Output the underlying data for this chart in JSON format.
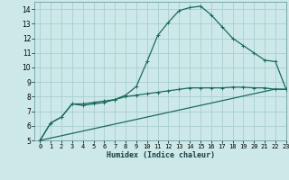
{
  "xlabel": "Humidex (Indice chaleur)",
  "background_color": "#cce8e8",
  "grid_color": "#aacece",
  "line_color": "#1a6b5a",
  "xlim": [
    -0.5,
    23
  ],
  "ylim": [
    5,
    14.5
  ],
  "xticks": [
    0,
    1,
    2,
    3,
    4,
    5,
    6,
    7,
    8,
    9,
    10,
    11,
    12,
    13,
    14,
    15,
    16,
    17,
    18,
    19,
    20,
    21,
    22,
    23
  ],
  "yticks": [
    5,
    6,
    7,
    8,
    9,
    10,
    11,
    12,
    13,
    14
  ],
  "line1_x": [
    0,
    1,
    2,
    3,
    4,
    5,
    6,
    7,
    8,
    9,
    10,
    11,
    12,
    13,
    14,
    15,
    16,
    17,
    18,
    19,
    20,
    21,
    22,
    23
  ],
  "line1_y": [
    5.0,
    6.2,
    6.6,
    7.5,
    7.5,
    7.6,
    7.7,
    7.8,
    8.0,
    8.1,
    8.2,
    8.3,
    8.4,
    8.5,
    8.6,
    8.6,
    8.6,
    8.6,
    8.65,
    8.65,
    8.6,
    8.6,
    8.5,
    8.5
  ],
  "line2_x": [
    0,
    1,
    2,
    3,
    4,
    5,
    6,
    7,
    8,
    9,
    10,
    11,
    12,
    13,
    14,
    15,
    16,
    17,
    18,
    19,
    20,
    21,
    22,
    23
  ],
  "line2_y": [
    5.0,
    6.2,
    6.6,
    7.5,
    7.4,
    7.5,
    7.6,
    7.8,
    8.1,
    8.7,
    10.4,
    12.2,
    13.1,
    13.9,
    14.1,
    14.2,
    13.6,
    12.8,
    12.0,
    11.5,
    11.0,
    10.5,
    10.4,
    8.5
  ],
  "line3_x": [
    0,
    1,
    2,
    3,
    4,
    5,
    6,
    7,
    8,
    9,
    10,
    11,
    12,
    13,
    14,
    15,
    16,
    17,
    18,
    19,
    20,
    21,
    22,
    23
  ],
  "line3_y": [
    5.0,
    5.16,
    5.32,
    5.48,
    5.64,
    5.8,
    5.96,
    6.12,
    6.28,
    6.44,
    6.6,
    6.76,
    6.92,
    7.08,
    7.24,
    7.4,
    7.56,
    7.72,
    7.88,
    8.04,
    8.2,
    8.36,
    8.52,
    8.5
  ]
}
